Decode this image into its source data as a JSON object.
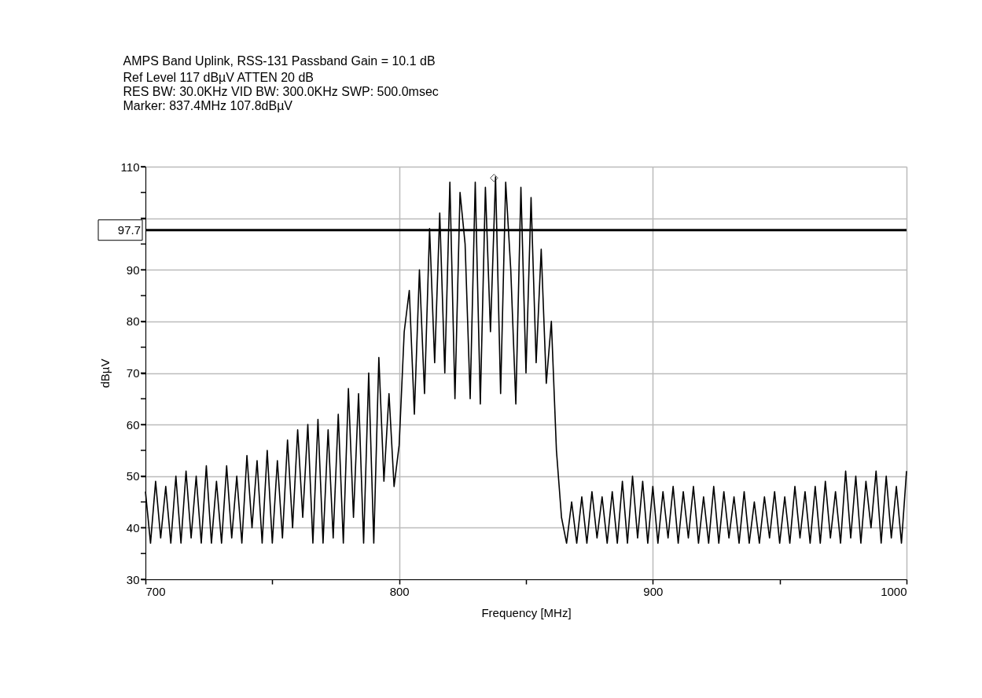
{
  "chart_data": {
    "type": "line",
    "title": "AMPS Band Uplink, RSS-131 Passband Gain = 10.1 dB",
    "subtitle": "Ref Level 117 dBµV    ATTEN 20 dB",
    "annotations": [
      "RES BW: 30.0KHz  VID BW: 300.0KHz  SWP: 500.0msec",
      "Marker: 837.4MHz  107.8dBµV"
    ],
    "xlabel": "Frequency [MHz]",
    "ylabel": "dBµV",
    "x": [
      700,
      702,
      704,
      706,
      708,
      710,
      712,
      714,
      716,
      718,
      720,
      722,
      724,
      726,
      728,
      730,
      732,
      734,
      736,
      738,
      740,
      742,
      744,
      746,
      748,
      750,
      752,
      754,
      756,
      758,
      760,
      762,
      764,
      766,
      768,
      770,
      772,
      774,
      776,
      778,
      780,
      782,
      784,
      786,
      788,
      790,
      792,
      794,
      796,
      798,
      800,
      802,
      804,
      806,
      808,
      810,
      812,
      814,
      816,
      818,
      820,
      822,
      824,
      826,
      828,
      830,
      832,
      834,
      836,
      838,
      840,
      842,
      844,
      846,
      848,
      850,
      852,
      854,
      856,
      858,
      860,
      862,
      864,
      866,
      868,
      870,
      872,
      874,
      876,
      878,
      880,
      882,
      884,
      886,
      888,
      890,
      892,
      894,
      896,
      898,
      900,
      902,
      904,
      906,
      908,
      910,
      912,
      914,
      916,
      918,
      920,
      922,
      924,
      926,
      928,
      930,
      932,
      934,
      936,
      938,
      940,
      942,
      944,
      946,
      948,
      950,
      952,
      954,
      956,
      958,
      960,
      962,
      964,
      966,
      968,
      970,
      972,
      974,
      976,
      978,
      980,
      982,
      984,
      986,
      988,
      990,
      992,
      994,
      996,
      998,
      1000
    ],
    "series": [
      {
        "type": "scatter",
        "marker": "diamond",
        "color": "#000000",
        "x": [
          837.4
        ],
        "values": [
          107.8
        ]
      },
      {
        "color": "#000000",
        "values": [
          47,
          37,
          49,
          38,
          48,
          37,
          50,
          37,
          51,
          38,
          50,
          37,
          52,
          37,
          49,
          37,
          52,
          38,
          50,
          37,
          54,
          40,
          53,
          37,
          55,
          37,
          53,
          38,
          57,
          40,
          59,
          42,
          60,
          37,
          61,
          37,
          59,
          38,
          62,
          37,
          67,
          42,
          66,
          37,
          70,
          37,
          73,
          49,
          66,
          48,
          56,
          78,
          86,
          62,
          90,
          66,
          98,
          72,
          101,
          70,
          107,
          65,
          105,
          95,
          65,
          107,
          64,
          106,
          78,
          108,
          66,
          107,
          90,
          64,
          106,
          70,
          104,
          72,
          94,
          68,
          80,
          55,
          42,
          37,
          45,
          37,
          46,
          37,
          47,
          38,
          46,
          37,
          47,
          37,
          49,
          37,
          50,
          38,
          49,
          37,
          48,
          37,
          47,
          38,
          48,
          37,
          47,
          38,
          48,
          37,
          46,
          37,
          48,
          37,
          47,
          38,
          46,
          37,
          47,
          37,
          45,
          37,
          46,
          38,
          47,
          37,
          46,
          37,
          48,
          38,
          47,
          37,
          48,
          37,
          49,
          38,
          47,
          37,
          51,
          38,
          50,
          37,
          49,
          40,
          51,
          37,
          50,
          38,
          48,
          37,
          51
        ]
      }
    ],
    "xlim": [
      700,
      1000
    ],
    "ylim": [
      30,
      110
    ],
    "xticks": [
      700,
      {
        "value": 750,
        "label": null
      },
      800,
      {
        "value": 850,
        "label": null
      },
      900,
      {
        "value": 950,
        "label": null
      },
      1000
    ],
    "yticks": [
      30,
      {
        "value": 35,
        "label": null
      },
      40,
      {
        "value": 45,
        "label": null
      },
      50,
      {
        "value": 55,
        "label": null
      },
      60,
      {
        "value": 65,
        "label": null
      },
      70,
      {
        "value": 75,
        "label": null
      },
      80,
      {
        "value": 85,
        "label": null
      },
      90,
      {
        "value": 95,
        "label": null
      },
      {
        "value": 100,
        "label": null
      },
      {
        "value": 105,
        "label": null
      },
      110
    ],
    "ref_lines": [
      {
        "axis": "y",
        "value": 97.7,
        "label": "97.7"
      }
    ],
    "grid": true,
    "marker": "none",
    "line_style": "solid"
  }
}
